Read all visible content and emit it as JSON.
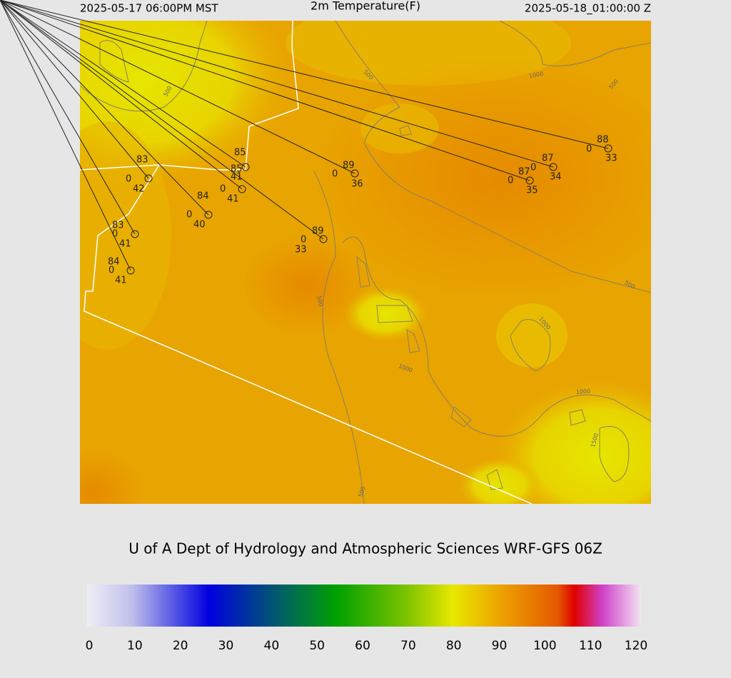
{
  "header": {
    "valid_local": "2025-05-17 06:00PM MST",
    "title": "2m Temperature(F)",
    "valid_utc": "2025-05-18_01:00:00 Z"
  },
  "stations": [
    {
      "temp": 83,
      "code": "0",
      "dewpoint": 42
    },
    {
      "temp": 85,
      "dewpoint": 41
    },
    {
      "temp": 85,
      "code": "0",
      "dewpoint": 41
    },
    {
      "temp": 84,
      "code": "0",
      "dewpoint": 40
    },
    {
      "temp": 83,
      "code": "0",
      "dewpoint": 41
    },
    {
      "temp": 84,
      "code": "0",
      "dewpoint": 41
    },
    {
      "temp": 89,
      "code": "0",
      "dewpoint": 36
    },
    {
      "temp": 89,
      "code": "0",
      "dewpoint": 33
    },
    {
      "temp": 87,
      "code": "0",
      "dewpoint": 35
    },
    {
      "temp": 87,
      "code": "0",
      "dewpoint": 34
    },
    {
      "temp": 88,
      "code": "0",
      "dewpoint": 33
    }
  ],
  "contour_labels": [
    500,
    500,
    1000,
    500,
    500,
    500,
    1000,
    1000,
    1000,
    1500,
    500
  ],
  "credit": "U of A Dept of Hydrology and Atmospheric Sciences WRF-GFS 06Z",
  "colorbar": {
    "range": [
      0,
      120
    ],
    "ticks": [
      0,
      10,
      20,
      30,
      40,
      50,
      60,
      70,
      80,
      90,
      100,
      110,
      120
    ]
  }
}
